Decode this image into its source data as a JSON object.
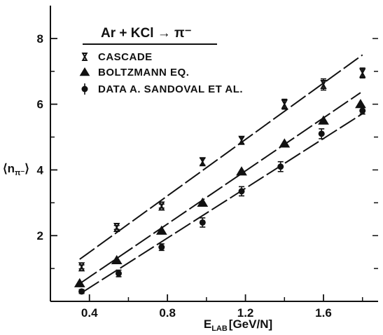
{
  "chart_data": {
    "type": "scatter",
    "title": "Ar + KCl → π⁻",
    "xlabel": {
      "main": "E",
      "sub": "LAB",
      "unit": "[GeV/N]"
    },
    "ylabel": {
      "main": "⟨n",
      "sub": "π⁻",
      "close": "⟩"
    },
    "xlim": [
      0.2,
      1.88
    ],
    "ylim": [
      0.0,
      9.0
    ],
    "x_ticks": [
      0.4,
      0.8,
      1.2,
      1.6
    ],
    "x_tick_labels": [
      "0.4",
      "0.8",
      "1.2",
      "1.6"
    ],
    "x_minor_ticks": [
      0.2,
      0.6,
      1.0,
      1.4,
      1.8
    ],
    "y_ticks": [
      2,
      4,
      6,
      8
    ],
    "y_tick_labels": [
      "2",
      "4",
      "6",
      "8"
    ],
    "y_minor_ticks": [
      1,
      3,
      5,
      7
    ],
    "legend_position": "top-left",
    "series": [
      {
        "name": "CASCADE",
        "marker": "hourglass",
        "x": [
          0.36,
          0.54,
          0.77,
          0.98,
          1.18,
          1.4,
          1.6,
          1.8
        ],
        "y": [
          1.05,
          2.25,
          2.9,
          4.25,
          4.9,
          6.0,
          6.6,
          6.95
        ],
        "yerr": [
          0.06,
          0.06,
          0.06,
          0.1,
          0.1,
          0.15,
          0.17,
          0.15
        ],
        "fit": [
          [
            0.35,
            1.28
          ],
          [
            1.8,
            7.5
          ]
        ]
      },
      {
        "name": "BOLTZMANN EQ.",
        "marker": "triangle",
        "x": [
          0.35,
          0.54,
          0.77,
          0.98,
          1.18,
          1.4,
          1.6,
          1.79
        ],
        "y": [
          0.55,
          1.25,
          2.15,
          3.0,
          3.95,
          4.8,
          5.5,
          6.0
        ],
        "fit": [
          [
            0.36,
            0.58
          ],
          [
            1.79,
            6.35
          ]
        ]
      },
      {
        "name": "DATA A. SANDOVAL ET AL.",
        "marker": "circle",
        "x": [
          0.36,
          0.55,
          0.77,
          0.98,
          1.18,
          1.38,
          1.59,
          1.8
        ],
        "y": [
          0.3,
          0.85,
          1.65,
          2.4,
          3.35,
          4.1,
          5.1,
          5.8
        ],
        "yerr": [
          0.06,
          0.1,
          0.1,
          0.14,
          0.14,
          0.15,
          0.15,
          0.1
        ],
        "fit": [
          [
            0.37,
            0.3
          ],
          [
            1.81,
            5.75
          ]
        ]
      }
    ]
  }
}
